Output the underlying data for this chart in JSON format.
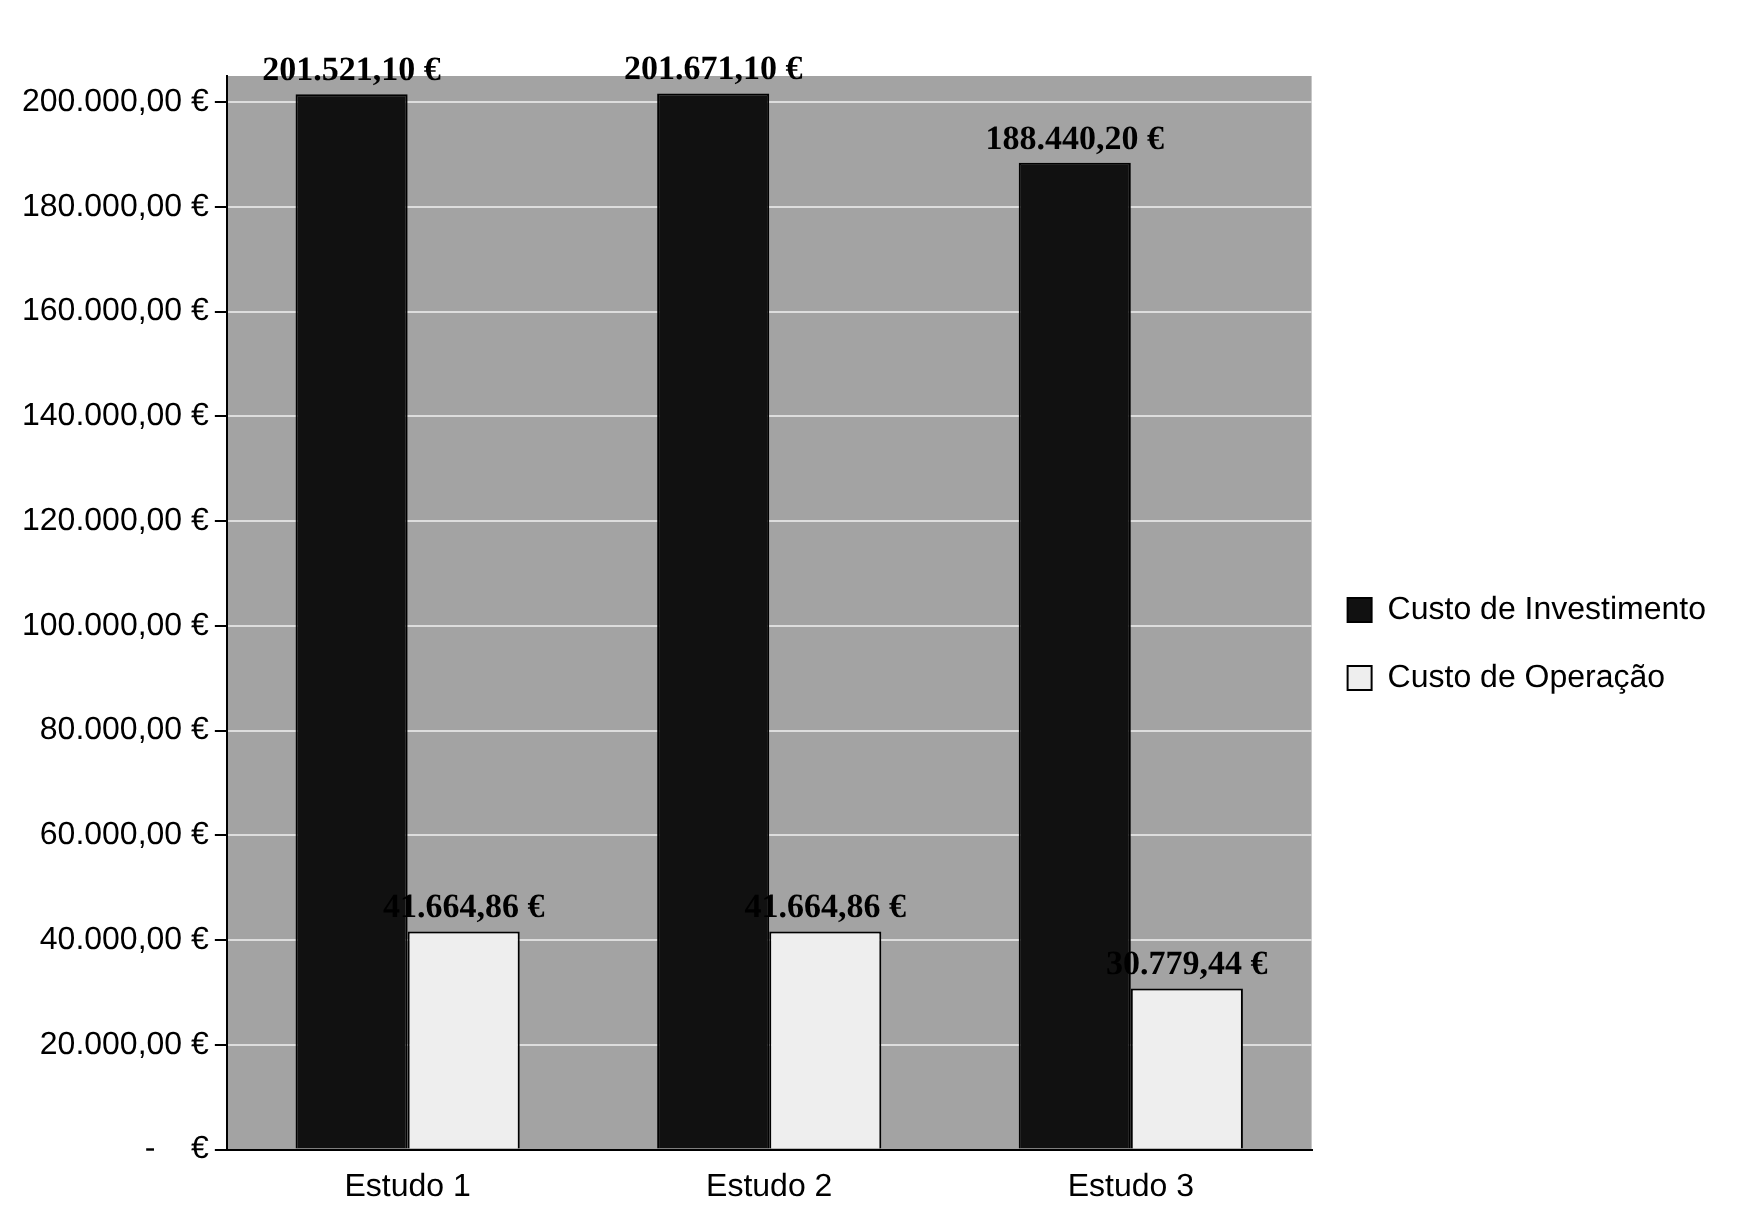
{
  "chart_data": {
    "type": "bar",
    "categories": [
      "Estudo 1",
      "Estudo 2",
      "Estudo 3"
    ],
    "series": [
      {
        "name": "Custo de Investimento",
        "color": "#111111",
        "values": [
          201521.1,
          201671.1,
          188440.2
        ],
        "value_labels": [
          "201.521,10 €",
          "201.671,10 €",
          "188.440,20 €"
        ]
      },
      {
        "name": "Custo de Operação",
        "color": "#eeeeee",
        "values": [
          41664.86,
          41664.86,
          30779.44
        ],
        "value_labels": [
          "41.664,86 €",
          "41.664,86 €",
          "30.779,44 €"
        ]
      }
    ],
    "ylim": [
      0,
      205000
    ],
    "yticks": [
      {
        "value": 0,
        "label": "-    €"
      },
      {
        "value": 20000,
        "label": "20.000,00 €"
      },
      {
        "value": 40000,
        "label": "40.000,00 €"
      },
      {
        "value": 60000,
        "label": "60.000,00 €"
      },
      {
        "value": 80000,
        "label": "80.000,00 €"
      },
      {
        "value": 100000,
        "label": "100.000,00 €"
      },
      {
        "value": 120000,
        "label": "120.000,00 €"
      },
      {
        "value": 140000,
        "label": "140.000,00 €"
      },
      {
        "value": 160000,
        "label": "160.000,00 €"
      },
      {
        "value": 180000,
        "label": "180.000,00 €"
      },
      {
        "value": 200000,
        "label": "200.000,00 €"
      }
    ],
    "grid": "y",
    "legend": "right"
  }
}
